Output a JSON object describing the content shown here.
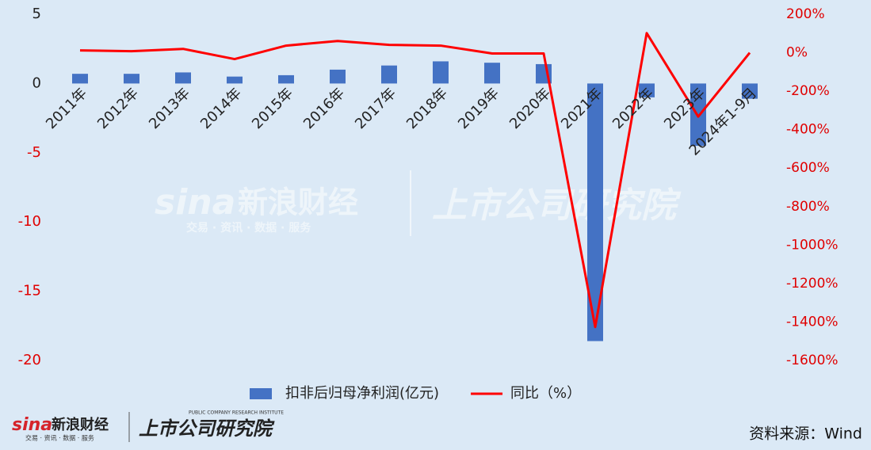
{
  "chart_data": {
    "type": "bar-line",
    "categories": [
      "2011年",
      "2012年",
      "2013年",
      "2014年",
      "2015年",
      "2016年",
      "2017年",
      "2018年",
      "2019年",
      "2020年",
      "2021年",
      "2022年",
      "2023年",
      "2024年1-9月"
    ],
    "series": [
      {
        "name": "扣非后归母净利润(亿元)",
        "type": "bar",
        "color": "#4472c4",
        "values": [
          0.7,
          0.7,
          0.8,
          0.5,
          0.6,
          1.0,
          1.3,
          1.6,
          1.5,
          1.4,
          -18.6,
          -1.0,
          -4.5,
          -1.1
        ]
      },
      {
        "name": "同比（%）",
        "type": "line",
        "axis": "y2",
        "color": "#ff0000",
        "values": [
          12,
          8,
          20,
          -33,
          37,
          61,
          41,
          37,
          -4,
          -4,
          -1426,
          102,
          -332,
          0
        ]
      }
    ],
    "ylim": [
      -20,
      5
    ],
    "yticks": [
      5,
      0,
      -5,
      -10,
      -15,
      -20
    ],
    "y2lim": [
      -1600,
      200
    ],
    "y2ticks": [
      {
        "value": 200,
        "label": "200%"
      },
      {
        "value": 0,
        "label": "0%"
      },
      {
        "value": -200,
        "label": "-200%"
      },
      {
        "value": -400,
        "label": "-400%"
      },
      {
        "value": -600,
        "label": "-600%"
      },
      {
        "value": -800,
        "label": "-800%"
      },
      {
        "value": -1000,
        "label": "-1000%"
      },
      {
        "value": -1200,
        "label": "-1200%"
      },
      {
        "value": -1400,
        "label": "-1400%"
      },
      {
        "value": -1600,
        "label": "-1600%"
      }
    ],
    "legend": "bottom",
    "source": "资料来源：Wind",
    "branding": [
      "sina",
      "新浪财经",
      "交易 · 资讯 · 数据 · 服务",
      "上市公司研究院",
      "PUBLIC COMPANY RESEARCH INSTITUTE"
    ]
  }
}
